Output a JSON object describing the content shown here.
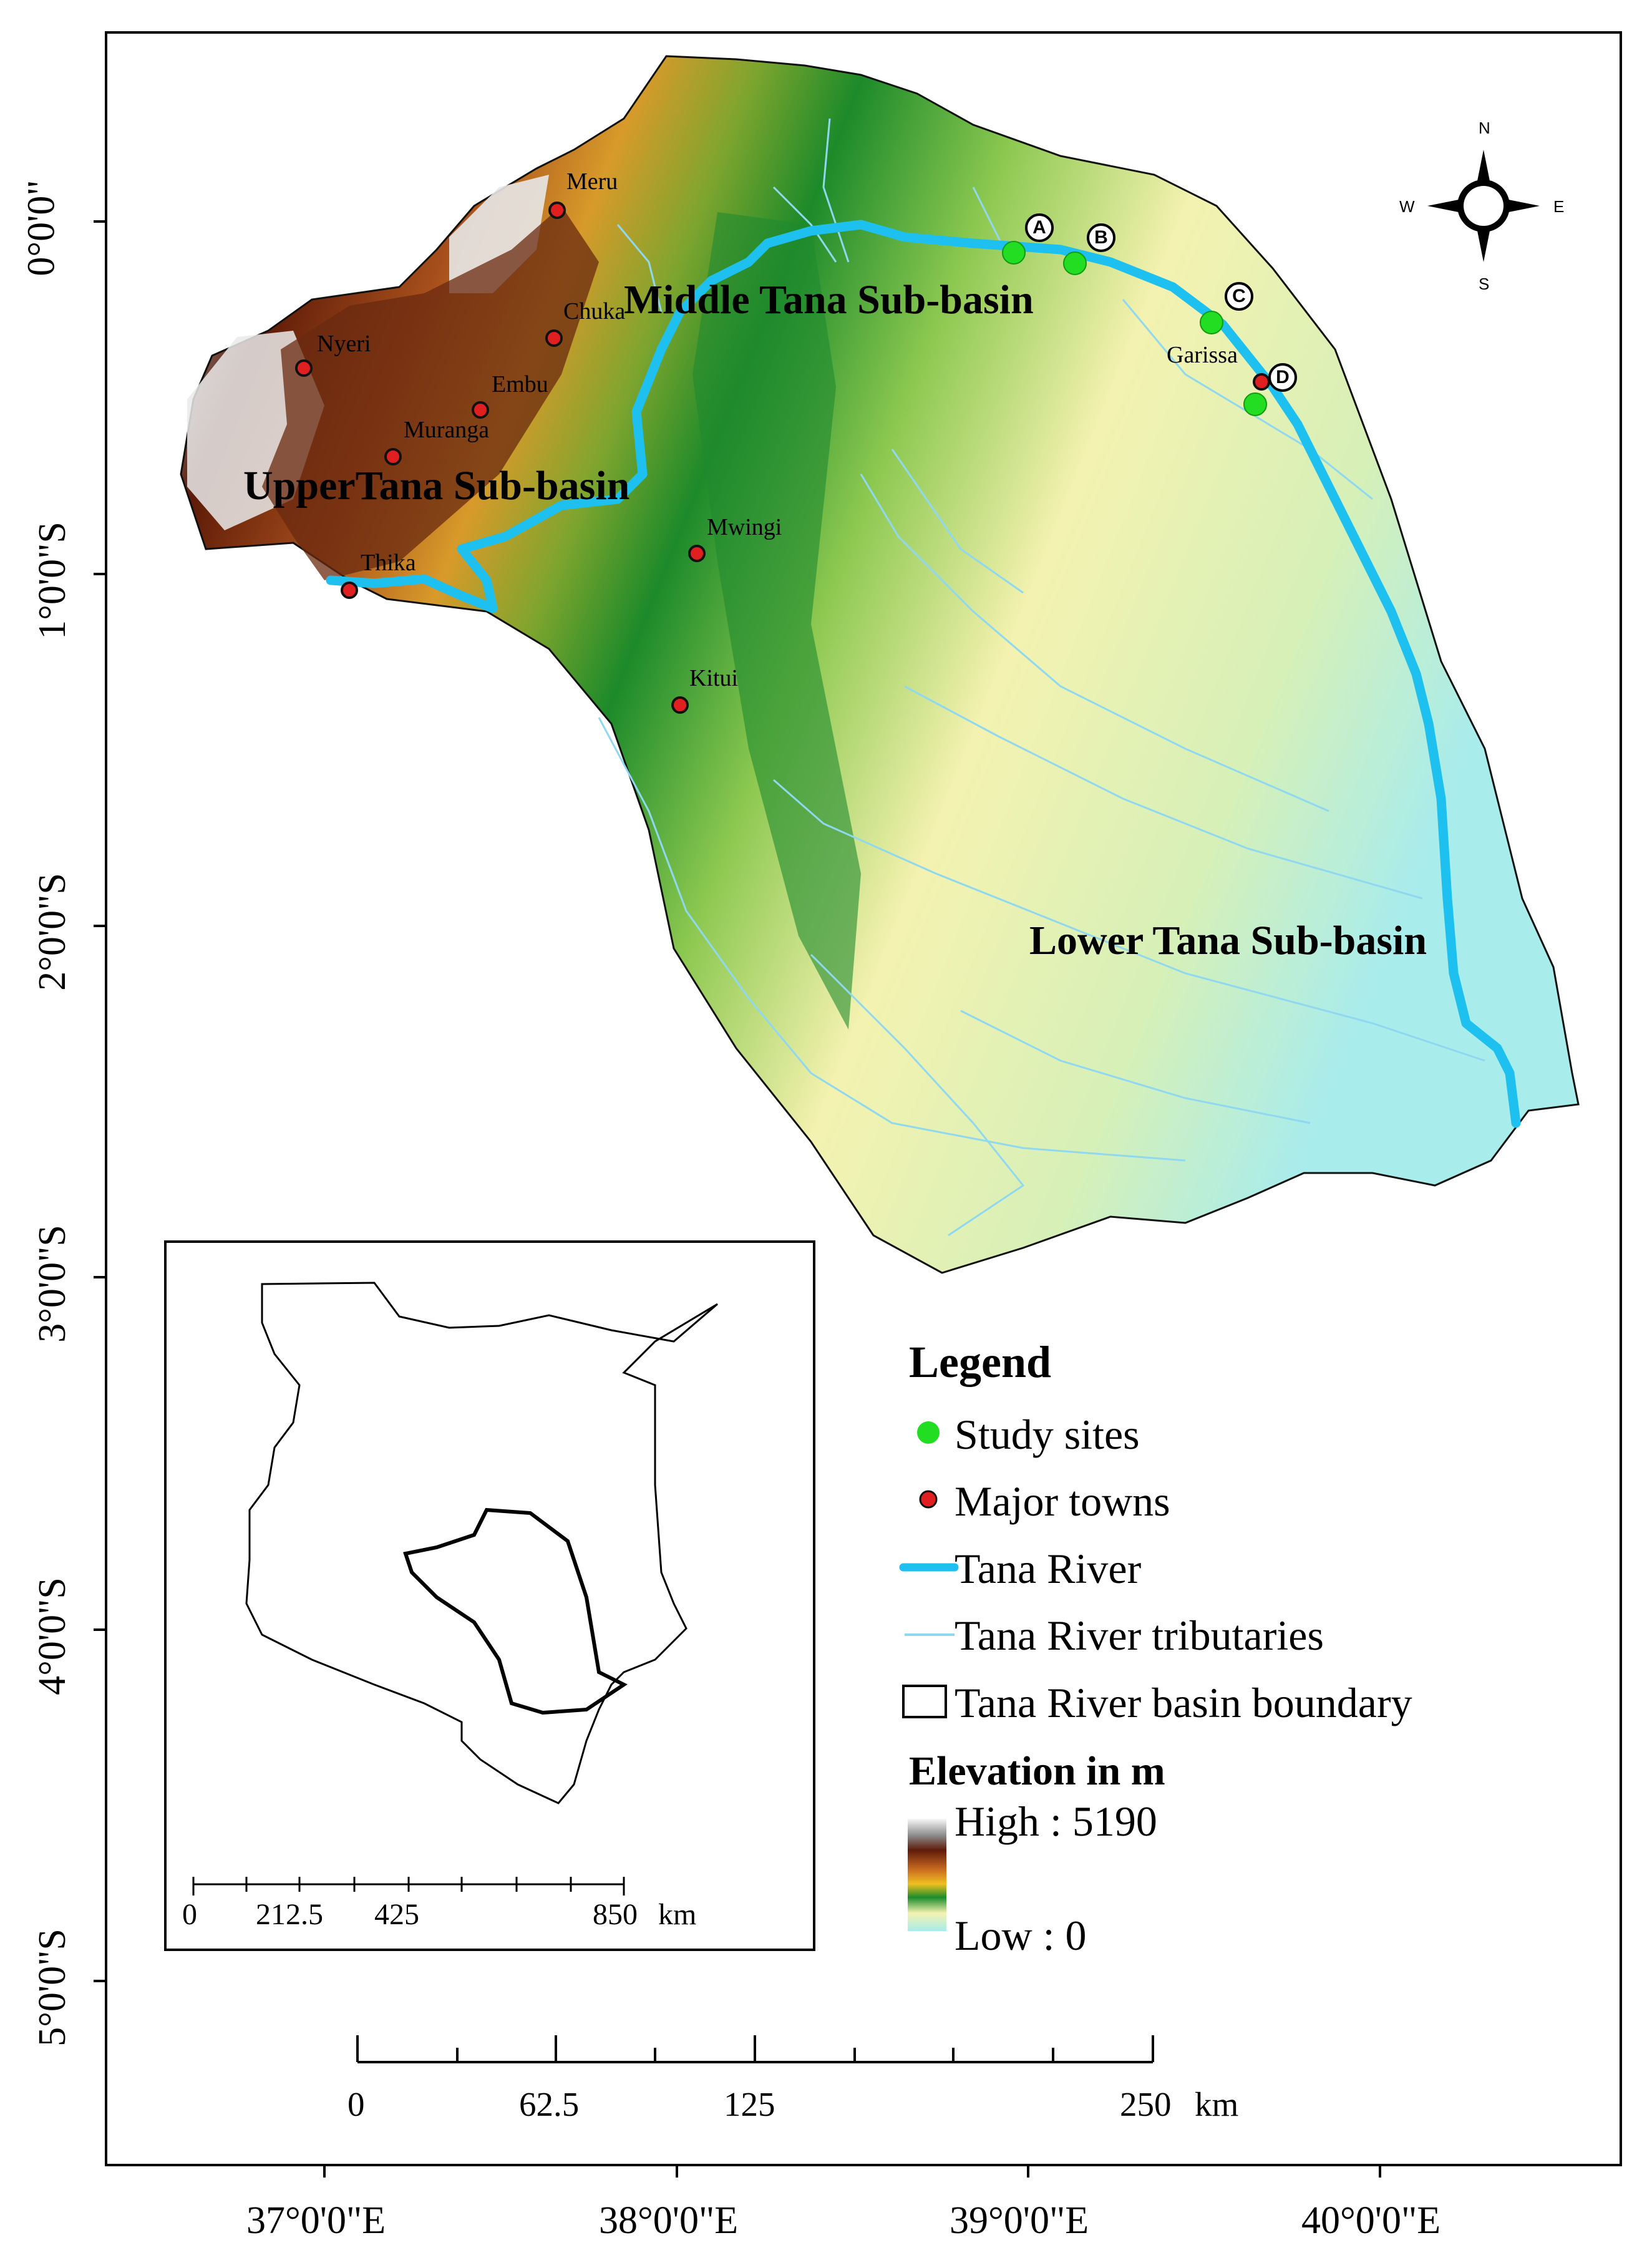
{
  "latitude_labels": [
    "0°0'0\"",
    "1°0'0\"S",
    "2°0'0\"S",
    "3°0'0\"S",
    "4°0'0\"S",
    "5°0'0\"S"
  ],
  "longitude_labels": [
    "37°0'0\"E",
    "38°0'0\"E",
    "39°0'0\"E",
    "40°0'0\"E"
  ],
  "basin_labels": {
    "upper": "UpperTana Sub-basin",
    "middle": "Middle Tana Sub-basin",
    "lower": "Lower Tana Sub-basin"
  },
  "towns": [
    "Meru",
    "Chuka",
    "Nyeri",
    "Embu",
    "Muranga",
    "Thika",
    "Mwingi",
    "Kitui",
    "Garissa"
  ],
  "study_sites": [
    "A",
    "B",
    "C",
    "D"
  ],
  "compass": {
    "n": "N",
    "s": "S",
    "e": "E",
    "w": "W"
  },
  "legend": {
    "title": "Legend",
    "items": {
      "study_sites": "Study sites",
      "major_towns": "Major towns",
      "river": "Tana River",
      "tributaries": "Tana River tributaries",
      "boundary": "Tana River basin boundary"
    },
    "elevation_title": "Elevation in m",
    "high": "High : 5190",
    "low": "Low : 0"
  },
  "main_scale": {
    "labels": [
      "0",
      "62.5",
      "125",
      "250"
    ],
    "unit": "km"
  },
  "inset_scale": {
    "labels": [
      "0",
      "212.5",
      "425",
      "850"
    ],
    "unit": "km"
  },
  "colors": {
    "river": "#1ec0f0",
    "tributary": "#8fd8f0",
    "study_site": "#22dd22",
    "town": "#e02020",
    "elev_high": "#f4f4f4",
    "elev_mid": "#1a8c2a",
    "elev_low": "#a8ecec"
  }
}
